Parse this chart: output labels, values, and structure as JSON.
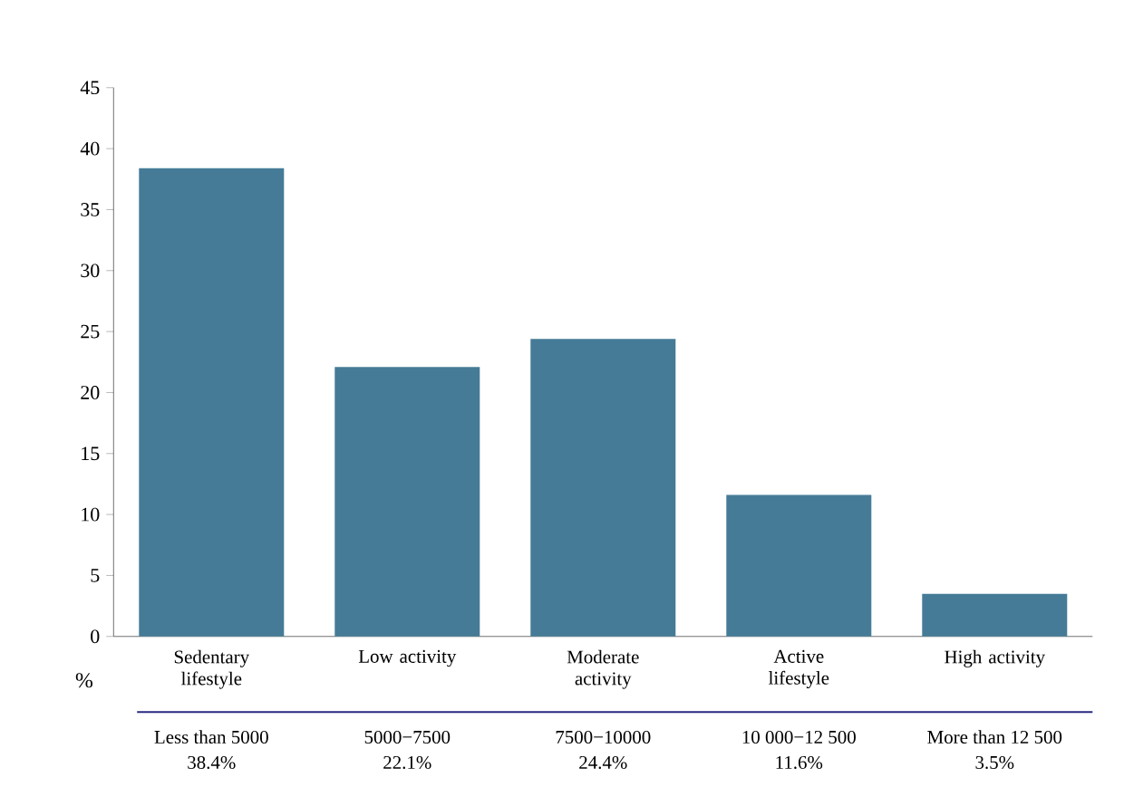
{
  "chart_data": {
    "type": "bar",
    "ylabel": "%",
    "categories": [
      "Sedentary lifestyle",
      "Low activity",
      "Moderate activity",
      "Active lifestyle",
      "High activity"
    ],
    "values": [
      38.4,
      22.1,
      24.4,
      11.6,
      3.5
    ],
    "value_labels": [
      "38.4%",
      "22.1%",
      "24.4%",
      "11.6%",
      "3.5%"
    ],
    "annotations": [
      "Less than 5000",
      "5000−7500",
      "7500−10000",
      "10 000−12 500",
      "More than 12 500"
    ],
    "color": "#457b96",
    "ylim": [
      0,
      45
    ],
    "yticks": [
      0,
      5,
      10,
      15,
      20,
      25,
      30,
      35,
      40,
      45
    ],
    "grid": false
  }
}
